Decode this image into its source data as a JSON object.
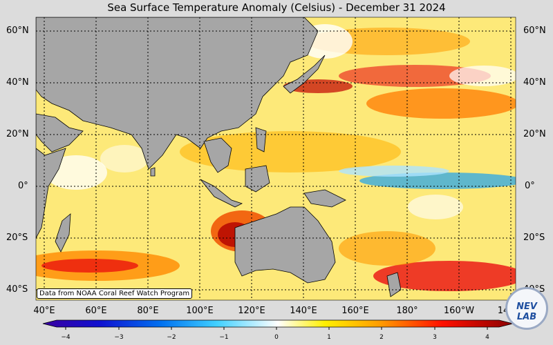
{
  "title": "Sea Surface Temperature Anomaly (Celsius) - December 31 2024",
  "credit": "Data from NOAA Coral Reef Watch Program",
  "logo_text": "NEV LAB",
  "lat_labels": [
    "60°N",
    "40°N",
    "20°N",
    "0°",
    "20°S",
    "40°S"
  ],
  "lon_labels": [
    "40°E",
    "60°E",
    "80°E",
    "100°E",
    "120°E",
    "140°E",
    "160°E",
    "180°",
    "160°W",
    "14"
  ],
  "colorbar_ticks": [
    "−4",
    "−3",
    "−2",
    "−1",
    "0",
    "1",
    "2",
    "3",
    "4"
  ],
  "colorbar_range": [
    -4,
    4
  ],
  "colors": {
    "land": "#a6a6a6",
    "ocean_neutral": "#fde979",
    "warm": "#e8000b",
    "cool": "#2aa6e8",
    "background": "#dcdcdc"
  }
}
